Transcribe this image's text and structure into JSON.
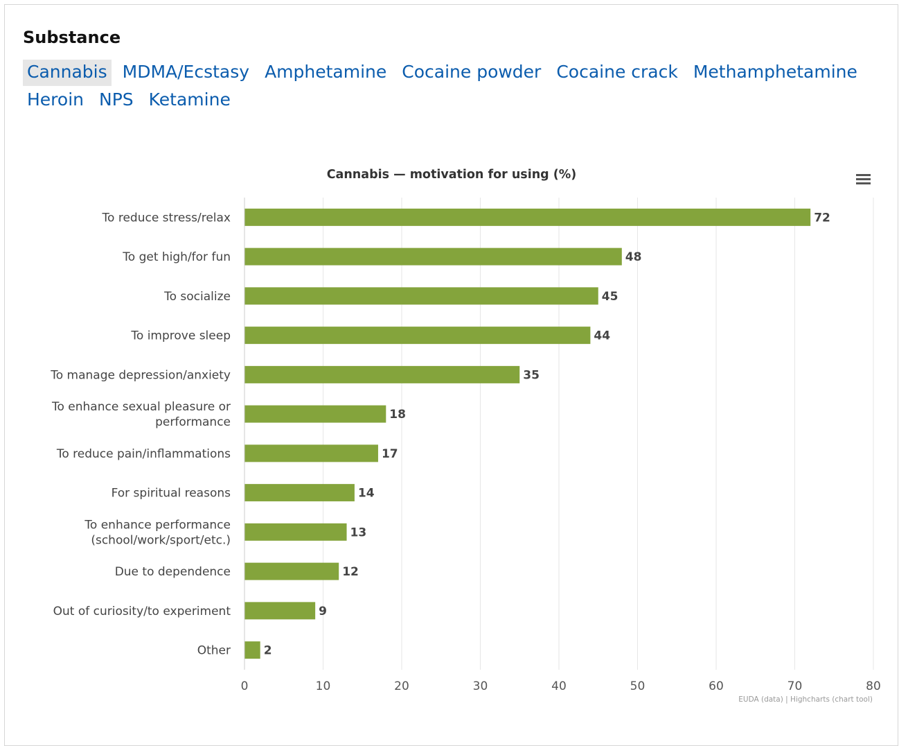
{
  "heading": "Substance",
  "tabs": [
    {
      "label": "Cannabis",
      "active": true
    },
    {
      "label": "MDMA/Ecstasy",
      "active": false
    },
    {
      "label": "Amphetamine",
      "active": false
    },
    {
      "label": "Cocaine powder",
      "active": false
    },
    {
      "label": "Cocaine crack",
      "active": false
    },
    {
      "label": "Methamphetamine",
      "active": false
    },
    {
      "label": "Heroin",
      "active": false
    },
    {
      "label": "NPS",
      "active": false
    },
    {
      "label": "Ketamine",
      "active": false
    }
  ],
  "credits": "EUDA (data) | Highcharts (chart tool)",
  "menu_icon": "hamburger-menu-icon",
  "chart_data": {
    "type": "bar",
    "orientation": "horizontal",
    "title": "Cannabis — motivation for using (%)",
    "categories": [
      [
        "To reduce stress/relax"
      ],
      [
        "To get high/for fun"
      ],
      [
        "To socialize"
      ],
      [
        "To improve sleep"
      ],
      [
        "To manage depression/anxiety"
      ],
      [
        "To enhance sexual pleasure or",
        "performance"
      ],
      [
        "To reduce pain/inflammations"
      ],
      [
        "For spiritual reasons"
      ],
      [
        "To enhance performance",
        "(school/work/sport/etc.)"
      ],
      [
        "Due to dependence"
      ],
      [
        "Out of curiosity/to experiment"
      ],
      [
        "Other"
      ]
    ],
    "values": [
      72,
      48,
      45,
      44,
      35,
      18,
      17,
      14,
      13,
      12,
      9,
      2
    ],
    "xlim": [
      0,
      80
    ],
    "xticks": [
      0,
      10,
      20,
      30,
      40,
      50,
      60,
      70,
      80
    ],
    "bar_color": "#84a43c",
    "grid": true,
    "data_labels": true
  }
}
